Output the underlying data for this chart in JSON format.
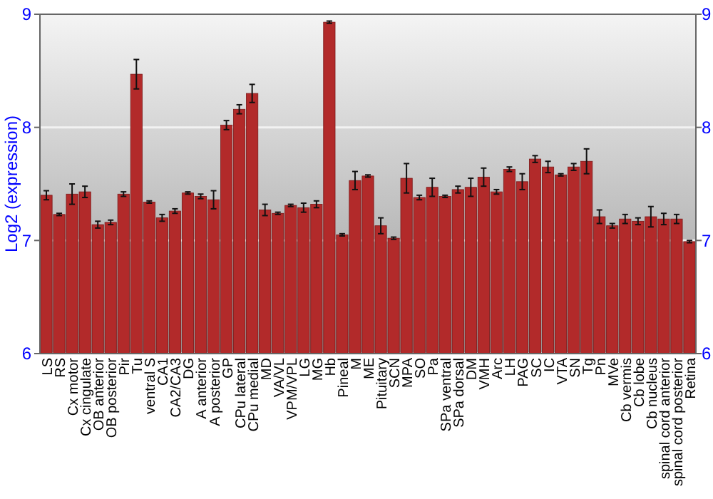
{
  "chart_data": {
    "type": "bar",
    "ylabel": "Log2 (expression)",
    "categories": [
      "LS",
      "RS",
      "Cx motor",
      "Cx cingulate",
      "OB anterior",
      "OB posterior",
      "Pir",
      "Tu",
      "ventral S",
      "CA1",
      "CA2/CA3",
      "DG",
      "A anterior",
      "A posterior",
      "GP",
      "CPu lateral",
      "CPu medial",
      "MD",
      "VA/VL",
      "VPM/VPL",
      "LG",
      "MG",
      "Hb",
      "Pineal",
      "M",
      "ME",
      "Pituitary",
      "SCN",
      "MPA",
      "SO",
      "Pa",
      "SPa ventral",
      "SPa dorsal",
      "DM",
      "VMH",
      "Arc",
      "LH",
      "PAG",
      "SC",
      "IC",
      "VTA",
      "SN",
      "Tg",
      "Pn",
      "MVe",
      "Cb vermis",
      "Cb lobe",
      "Cb nucleus",
      "spinal cord anterior",
      "spinal cord posterior",
      "Retina"
    ],
    "values": [
      7.4,
      7.23,
      7.41,
      7.43,
      7.14,
      7.16,
      7.41,
      8.47,
      7.34,
      7.2,
      7.26,
      7.42,
      7.39,
      7.36,
      8.02,
      8.16,
      8.3,
      7.27,
      7.24,
      7.31,
      7.29,
      7.32,
      8.93,
      7.05,
      7.53,
      7.57,
      7.13,
      7.02,
      7.55,
      7.38,
      7.47,
      7.39,
      7.45,
      7.47,
      7.56,
      7.43,
      7.63,
      7.52,
      7.72,
      7.65,
      7.58,
      7.65,
      7.7,
      7.21,
      7.13,
      7.19,
      7.17,
      7.21,
      7.19,
      7.19,
      6.99
    ],
    "errors": [
      0.04,
      0.01,
      0.09,
      0.05,
      0.03,
      0.02,
      0.02,
      0.13,
      0.01,
      0.03,
      0.02,
      0.01,
      0.02,
      0.08,
      0.04,
      0.04,
      0.08,
      0.05,
      0.01,
      0.01,
      0.04,
      0.03,
      0.01,
      0.01,
      0.08,
      0.01,
      0.07,
      0.01,
      0.13,
      0.02,
      0.08,
      0.01,
      0.03,
      0.08,
      0.08,
      0.02,
      0.02,
      0.07,
      0.03,
      0.05,
      0.01,
      0.03,
      0.11,
      0.06,
      0.02,
      0.04,
      0.03,
      0.09,
      0.05,
      0.04,
      0.01
    ],
    "color": "#b22a2a",
    "ylim": [
      6,
      9
    ],
    "yticks": [
      6,
      7,
      8,
      9
    ],
    "y2lim": [
      6,
      9
    ],
    "y2ticks": [
      6,
      7,
      8,
      9
    ],
    "grid": "y"
  }
}
